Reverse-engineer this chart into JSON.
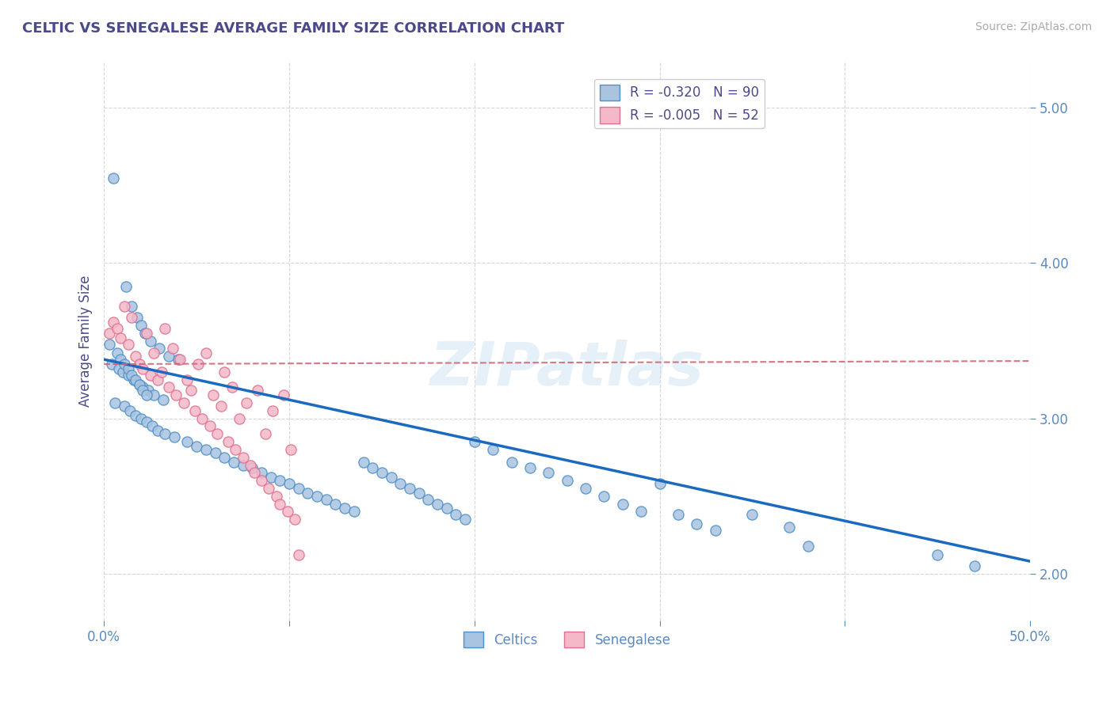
{
  "title": "CELTIC VS SENEGALESE AVERAGE FAMILY SIZE CORRELATION CHART",
  "source": "Source: ZipAtlas.com",
  "ylabel": "Average Family Size",
  "xlim": [
    0,
    50
  ],
  "ylim": [
    1.7,
    5.3
  ],
  "yticks": [
    2.0,
    3.0,
    4.0,
    5.0
  ],
  "xticks": [
    0,
    10,
    20,
    30,
    40,
    50
  ],
  "xticklabels": [
    "0.0%",
    "",
    "",
    "",
    "",
    "50.0%"
  ],
  "celtic_R": -0.32,
  "celtic_N": 90,
  "senegalese_R": -0.005,
  "senegalese_N": 52,
  "celtic_color": "#a8c4e0",
  "celtic_edge_color": "#5090c8",
  "celtic_line_color": "#1a6abf",
  "senegalese_color": "#f4b8c8",
  "senegalese_edge_color": "#e07090",
  "senegalese_line_color": "#d06878",
  "background_color": "#ffffff",
  "grid_color": "#cccccc",
  "title_color": "#4a4a8a",
  "tick_color": "#5a8ac0",
  "watermark": "ZIPatlas",
  "celtic_scatter_x": [
    0.5,
    1.2,
    1.5,
    1.8,
    2.0,
    2.2,
    2.5,
    3.0,
    3.5,
    4.0,
    0.4,
    0.8,
    1.0,
    1.3,
    1.6,
    1.9,
    2.1,
    2.4,
    2.7,
    3.2,
    0.6,
    1.1,
    1.4,
    1.7,
    2.0,
    2.3,
    2.6,
    2.9,
    3.3,
    3.8,
    4.5,
    5.0,
    5.5,
    6.0,
    6.5,
    7.0,
    7.5,
    8.0,
    8.5,
    9.0,
    9.5,
    10.0,
    10.5,
    11.0,
    11.5,
    12.0,
    12.5,
    13.0,
    13.5,
    14.0,
    14.5,
    15.0,
    15.5,
    16.0,
    16.5,
    17.0,
    17.5,
    18.0,
    18.5,
    19.0,
    19.5,
    20.0,
    21.0,
    22.0,
    23.0,
    24.0,
    25.0,
    26.0,
    27.0,
    28.0,
    29.0,
    30.0,
    31.0,
    32.0,
    33.0,
    35.0,
    37.0,
    38.0,
    45.0,
    47.0,
    0.3,
    0.7,
    0.9,
    1.1,
    1.3,
    1.5,
    1.7,
    1.9,
    2.1,
    2.3
  ],
  "celtic_scatter_y": [
    4.55,
    3.85,
    3.72,
    3.65,
    3.6,
    3.55,
    3.5,
    3.45,
    3.4,
    3.38,
    3.35,
    3.32,
    3.3,
    3.28,
    3.25,
    3.22,
    3.2,
    3.18,
    3.15,
    3.12,
    3.1,
    3.08,
    3.05,
    3.02,
    3.0,
    2.98,
    2.95,
    2.92,
    2.9,
    2.88,
    2.85,
    2.82,
    2.8,
    2.78,
    2.75,
    2.72,
    2.7,
    2.68,
    2.65,
    2.62,
    2.6,
    2.58,
    2.55,
    2.52,
    2.5,
    2.48,
    2.45,
    2.42,
    2.4,
    2.72,
    2.68,
    2.65,
    2.62,
    2.58,
    2.55,
    2.52,
    2.48,
    2.45,
    2.42,
    2.38,
    2.35,
    2.85,
    2.8,
    2.72,
    2.68,
    2.65,
    2.6,
    2.55,
    2.5,
    2.45,
    2.4,
    2.58,
    2.38,
    2.32,
    2.28,
    2.38,
    2.3,
    2.18,
    2.12,
    2.05,
    3.48,
    3.42,
    3.38,
    3.35,
    3.32,
    3.28,
    3.25,
    3.22,
    3.18,
    3.15
  ],
  "senegalese_scatter_x": [
    0.3,
    0.5,
    0.7,
    0.9,
    1.1,
    1.3,
    1.5,
    1.7,
    1.9,
    2.1,
    2.3,
    2.5,
    2.7,
    2.9,
    3.1,
    3.3,
    3.5,
    3.7,
    3.9,
    4.1,
    4.3,
    4.5,
    4.7,
    4.9,
    5.1,
    5.3,
    5.5,
    5.7,
    5.9,
    6.1,
    6.3,
    6.5,
    6.7,
    6.9,
    7.1,
    7.3,
    7.5,
    7.7,
    7.9,
    8.1,
    8.3,
    8.5,
    8.7,
    8.9,
    9.1,
    9.3,
    9.5,
    9.7,
    9.9,
    10.1,
    10.3,
    10.5
  ],
  "senegalese_scatter_y": [
    3.55,
    3.62,
    3.58,
    3.52,
    3.72,
    3.48,
    3.65,
    3.4,
    3.35,
    3.32,
    3.55,
    3.28,
    3.42,
    3.25,
    3.3,
    3.58,
    3.2,
    3.45,
    3.15,
    3.38,
    3.1,
    3.25,
    3.18,
    3.05,
    3.35,
    3.0,
    3.42,
    2.95,
    3.15,
    2.9,
    3.08,
    3.3,
    2.85,
    3.2,
    2.8,
    3.0,
    2.75,
    3.1,
    2.7,
    2.65,
    3.18,
    2.6,
    2.9,
    2.55,
    3.05,
    2.5,
    2.45,
    3.15,
    2.4,
    2.8,
    2.35,
    2.12
  ],
  "celtic_line_x": [
    0,
    50
  ],
  "celtic_line_y": [
    3.38,
    2.08
  ],
  "sene_line_x": [
    0,
    50
  ],
  "sene_line_y": [
    3.35,
    3.37
  ]
}
